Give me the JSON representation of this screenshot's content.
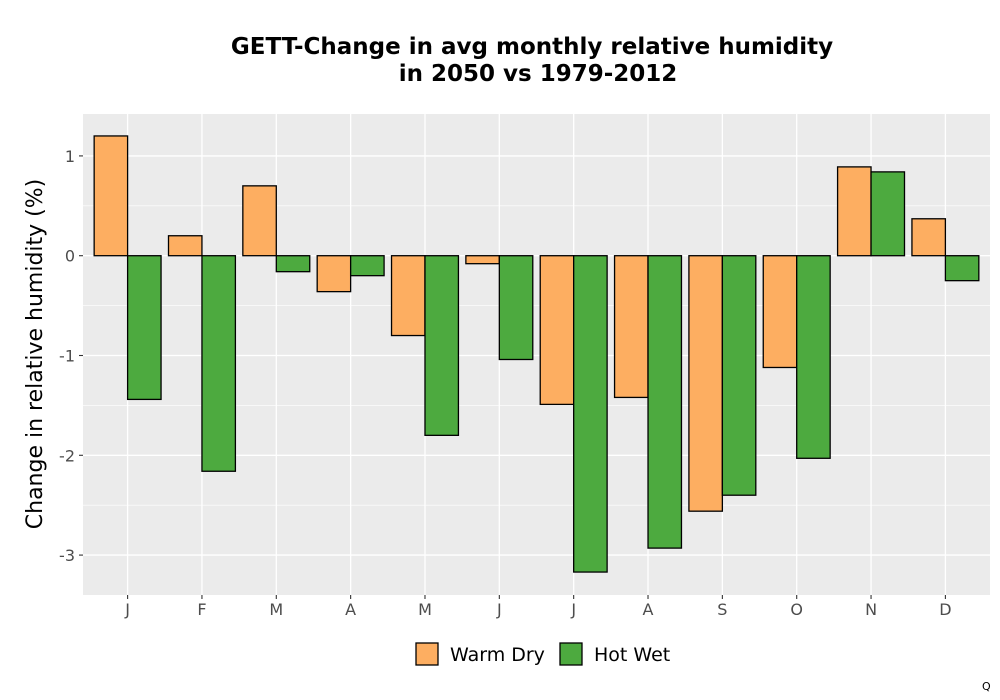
{
  "chart_data": {
    "type": "bar",
    "title": [
      "GETT-Change in avg monthly relative humidity",
      "in 2050 vs 1979-2012"
    ],
    "xlabel": "",
    "ylabel": "Change in relative humidity (%)",
    "categories": [
      "J",
      "F",
      "M",
      "A",
      "M",
      "J",
      "J",
      "A",
      "S",
      "O",
      "N",
      "D"
    ],
    "yticks": [
      1,
      0,
      -1,
      -2,
      -3
    ],
    "ytick_labels": [
      "1",
      "0",
      "-1",
      "-2",
      "-3"
    ],
    "ylim": [
      -3.4,
      1.42
    ],
    "grid": true,
    "legend_position": "bottom",
    "series": [
      {
        "name": "Warm Dry",
        "color": "#FDAE61",
        "values": [
          1.2,
          0.2,
          0.7,
          -0.36,
          -0.8,
          -0.08,
          -1.49,
          -1.42,
          -2.56,
          -1.12,
          0.89,
          0.37
        ]
      },
      {
        "name": "Hot Wet",
        "color": "#4DAA3F",
        "values": [
          -1.44,
          -2.16,
          -0.16,
          -0.2,
          -1.8,
          -1.04,
          -3.17,
          -2.93,
          -2.4,
          -2.03,
          0.84,
          -0.25
        ]
      }
    ]
  },
  "corner_mark": "Q"
}
